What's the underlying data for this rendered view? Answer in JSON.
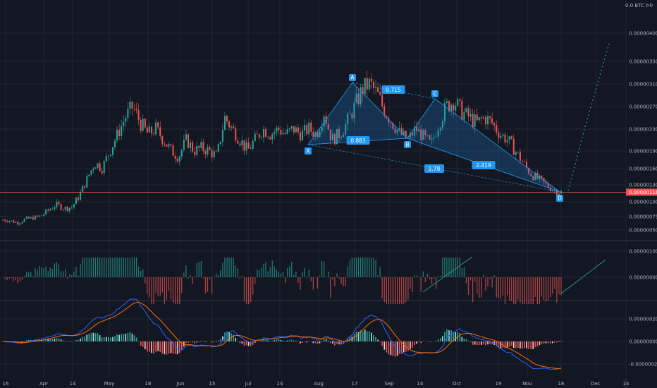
{
  "header": {
    "position_text": "0.0 BTC ᐅ0"
  },
  "colors": {
    "bg": "#131722",
    "grid": "#1f2430",
    "up": "#26a69a",
    "down": "#ef5350",
    "pattern": "#2196f3",
    "macd_line": "#2962ff",
    "signal_line": "#ff6d00",
    "osc_up": "#26a69a",
    "osc_down": "#ef5350",
    "current_price": "#ef5350"
  },
  "chart_data": [
    {
      "type": "candlestick",
      "pane": "price",
      "x_ticks": [
        "16",
        "Apr",
        "14",
        "May",
        "18",
        "Jun",
        "15",
        "Jul",
        "14",
        "Aug",
        "17",
        "Sep",
        "14",
        "Oct",
        "19",
        "Nov",
        "16",
        "Dec",
        "14"
      ],
      "y_ticks": [
        "0.00000050",
        "0.00000075",
        "0.00000100",
        "0.00000130",
        "0.00000160",
        "0.00000190",
        "0.00000230",
        "0.00000270",
        "0.00000310",
        "0.00000350",
        "0.00000400"
      ],
      "current_price": "0.00000116",
      "harmonic_pattern": {
        "points": {
          "X": "X",
          "A": "A",
          "B": "B",
          "C": "C",
          "D": "D"
        },
        "ratios": {
          "XB": "0.883",
          "AC": "0.715",
          "BD": "2.419",
          "XD": "1.78"
        }
      },
      "close_path": [
        6.8e-07,
        6.6e-07,
        6.2e-07,
        7e-07,
        7.2e-07,
        7.6e-07,
        8.5e-07,
        9.5e-07,
        8.8e-07,
        9e-07,
        1.1e-06,
        1.4e-06,
        1.7e-06,
        1.6e-06,
        1.9e-06,
        2.2e-06,
        2.5e-06,
        2.7e-06,
        2.4e-06,
        2.2e-06,
        2.3e-06,
        2.1e-06,
        1.9e-06,
        1.8e-06,
        2.1e-06,
        1.9e-06,
        1.95e-06,
        1.9e-06,
        1.8e-06,
        2.5e-06,
        2.3e-06,
        2.1e-06,
        1.9e-06,
        2.1e-06,
        2.3e-06,
        2.2e-06,
        2.3e-06,
        2.2e-06,
        2.3e-06,
        2.2e-06,
        2.3e-06,
        2.2e-06,
        2.6e-06,
        2.1e-06,
        2.2e-06,
        2.4e-06,
        2.7e-06,
        3e-06,
        3.1e-06,
        2.9e-06,
        2.6e-06,
        2.4e-06,
        2.2e-06,
        2.1e-06,
        2.3e-06,
        2.15e-06,
        2e-06,
        2.4e-06,
        2.7e-06,
        2.8e-06,
        2.6e-06,
        2.5e-06,
        2.4e-06,
        2.5e-06,
        2.4e-06,
        2.2e-06,
        2.1e-06,
        1.9e-06,
        1.7e-06,
        1.5e-06,
        1.4e-06,
        1.3e-06,
        1.2e-06,
        1.16e-06
      ]
    },
    {
      "type": "histogram",
      "pane": "momentum",
      "y_ticks": [
        "0.00000100",
        "0.00000000"
      ]
    },
    {
      "type": "macd",
      "pane": "macd",
      "y_ticks": [
        "0.00000020",
        "0.00000000",
        "-0.00000020"
      ]
    }
  ]
}
